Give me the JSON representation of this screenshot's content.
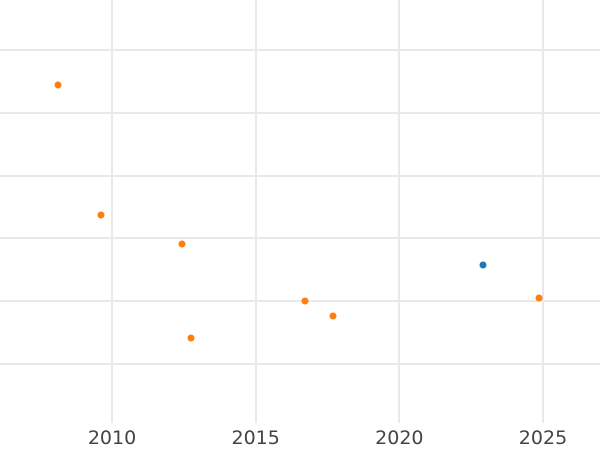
{
  "chart_data": {
    "type": "scatter",
    "title": "",
    "xlabel": "",
    "ylabel": "",
    "x_tick_labels": [
      "2010",
      "2015",
      "2020",
      "2025"
    ],
    "x_tick_years": [
      2010,
      2015,
      2020,
      2025
    ],
    "x_range_visible": [
      2006.1,
      2027.0
    ],
    "y_unit": "gridline-spacing units above lowest visible gridline (y-axis tick labels not visible in screenshot)",
    "y_gridline_units": [
      0,
      1,
      2,
      3,
      4,
      5
    ],
    "grid": true,
    "legend": false,
    "series": [
      {
        "name": "orange-series",
        "color": "#ff7f0e",
        "marker": "circle",
        "points": [
          {
            "x": 2008.12,
            "y": 4.45
          },
          {
            "x": 2009.62,
            "y": 2.37
          },
          {
            "x": 2012.44,
            "y": 1.91
          },
          {
            "x": 2012.75,
            "y": 0.41
          },
          {
            "x": 2016.72,
            "y": 1.0
          },
          {
            "x": 2017.69,
            "y": 0.76
          },
          {
            "x": 2024.86,
            "y": 1.05
          }
        ]
      },
      {
        "name": "blue-series",
        "color": "#1f77b4",
        "marker": "circle",
        "points": [
          {
            "x": 2022.91,
            "y": 1.57
          }
        ]
      }
    ]
  },
  "colors": {
    "background": "#ffffff",
    "gridline": "#e9e9e9",
    "tick_label": "#444444",
    "orange_marker": "#ff7f0e",
    "blue_marker": "#1f77b4"
  }
}
